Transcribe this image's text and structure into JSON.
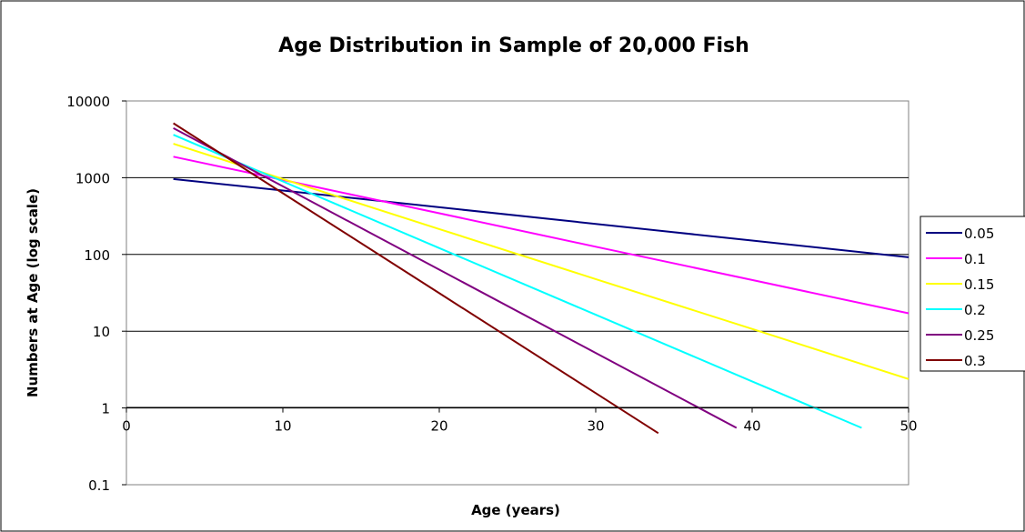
{
  "chart_data": {
    "type": "line",
    "title": "Age Distribution in Sample of 20,000 Fish",
    "xlabel": "Age (years)",
    "ylabel": "Numbers at Age (log scale)",
    "x_scale": "linear",
    "y_scale": "log",
    "xlim": [
      0,
      50
    ],
    "ylim": [
      0.1,
      10000
    ],
    "x_ticks": [
      "0",
      "10",
      "20",
      "30",
      "40",
      "50"
    ],
    "y_ticks": [
      "0.1",
      "1",
      "10",
      "100",
      "1000",
      "10000"
    ],
    "grid": "horizontal major gridlines",
    "legend_position": "right",
    "series": [
      {
        "name": "0.05",
        "color": "#000080",
        "x": [
          3,
          10,
          20,
          30,
          40,
          50
        ],
        "y": [
          960,
          680,
          412,
          250,
          152,
          92
        ]
      },
      {
        "name": "0.1",
        "color": "#ff00ff",
        "x": [
          3,
          10,
          20,
          30,
          40,
          50
        ],
        "y": [
          1880,
          935,
          344,
          126,
          46.5,
          17.1
        ]
      },
      {
        "name": "0.15",
        "color": "#ffff00",
        "x": [
          3,
          10,
          20,
          30,
          40,
          50
        ],
        "y": [
          2770,
          963,
          214,
          47.8,
          10.7,
          2.38
        ]
      },
      {
        "name": "0.2",
        "color": "#00ffff",
        "x": [
          3,
          10,
          20,
          30,
          40,
          47
        ],
        "y": [
          3620,
          894,
          121,
          16.4,
          2.22,
          0.55
        ]
      },
      {
        "name": "0.25",
        "color": "#800080",
        "x": [
          3,
          10,
          20,
          30,
          39
        ],
        "y": [
          4420,
          772,
          63.4,
          5.21,
          0.55
        ]
      },
      {
        "name": "0.3",
        "color": "#800000",
        "x": [
          3,
          10,
          20,
          30,
          34
        ],
        "y": [
          5130,
          628,
          31.3,
          1.56,
          0.47
        ]
      }
    ]
  }
}
